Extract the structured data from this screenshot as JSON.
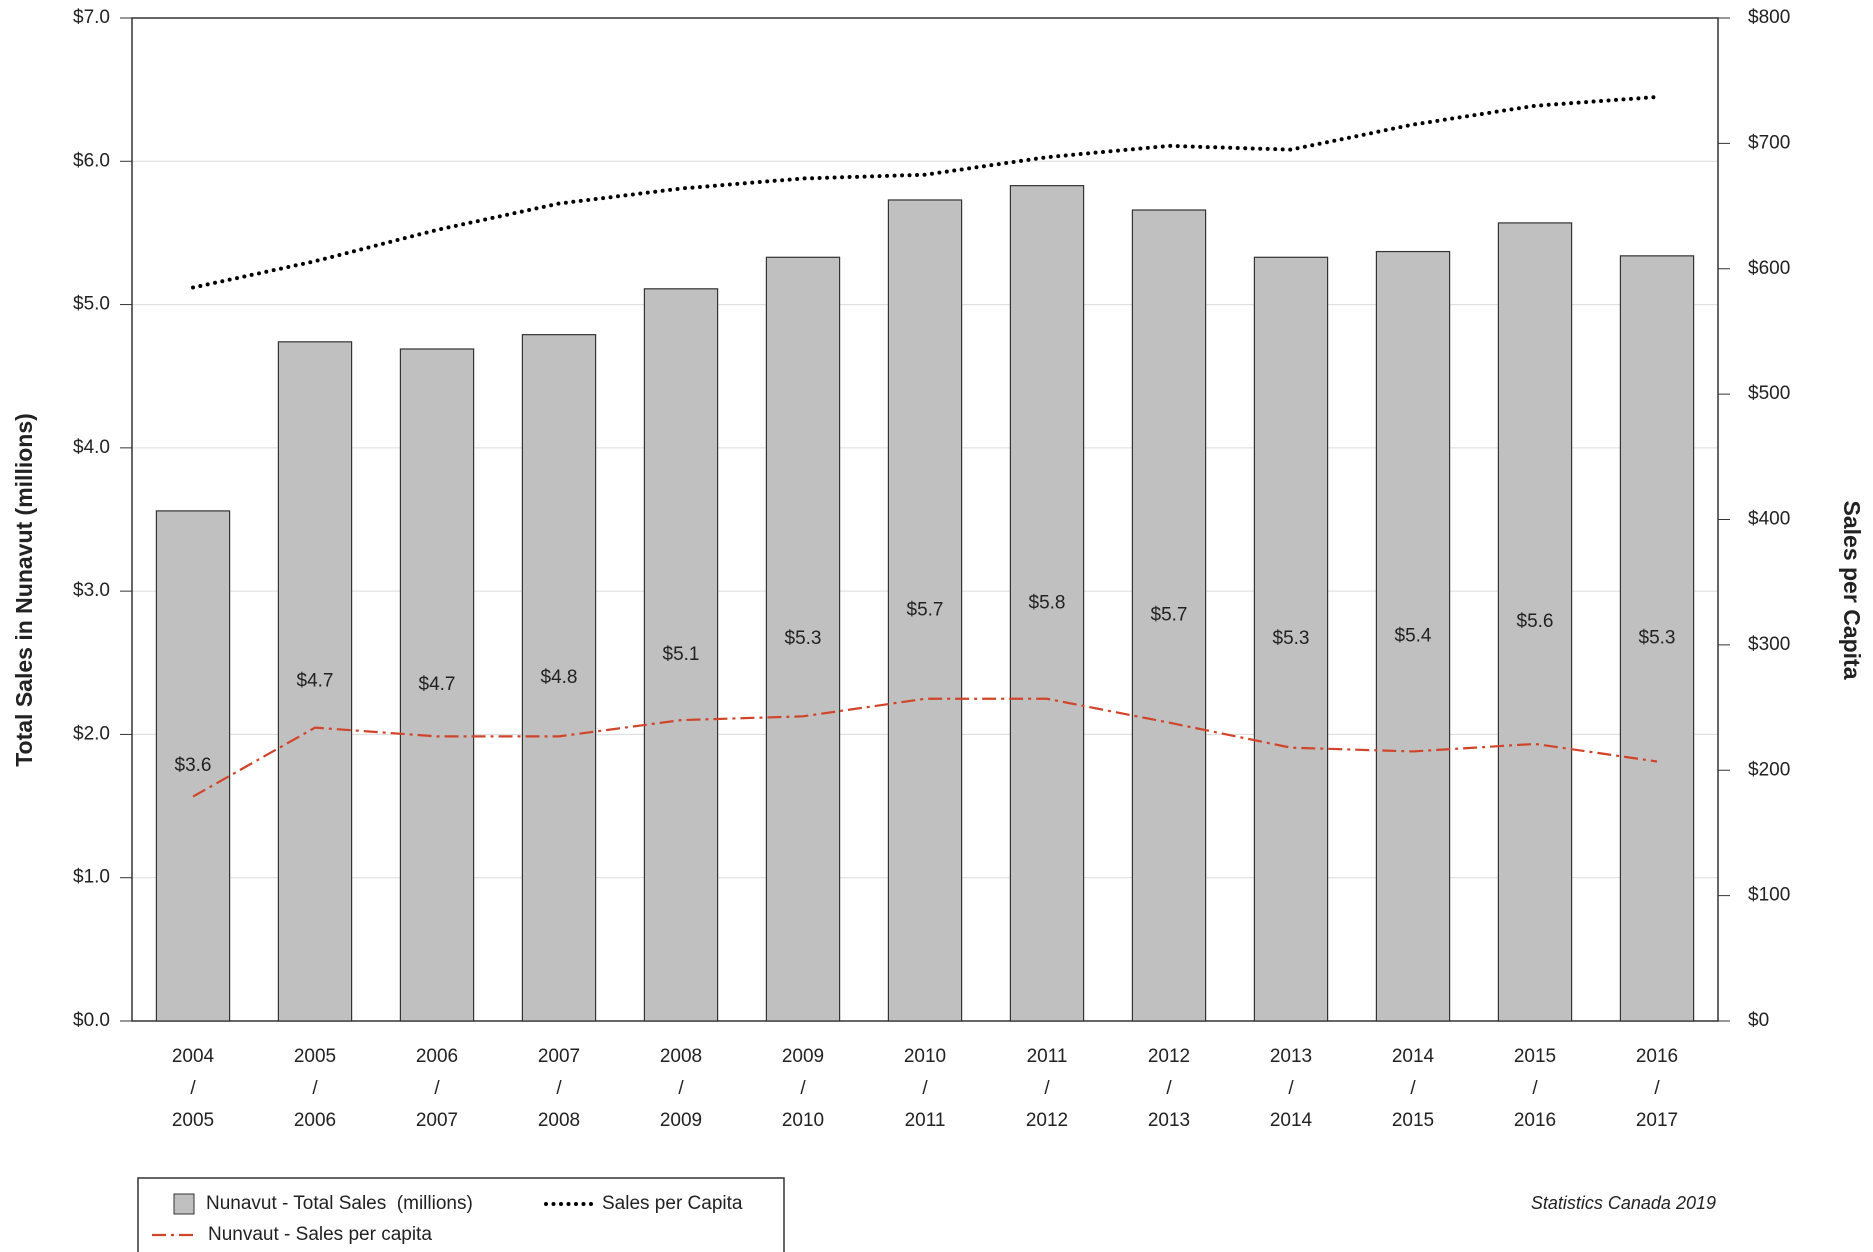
{
  "chart_data": {
    "type": "bar",
    "y_label": "Total Sales in Nunavut (millions)",
    "y2_label": "Sales per Capita",
    "source": "Statistics Canada 2019",
    "categories": [
      [
        "2004",
        "/",
        "2005"
      ],
      [
        "2005",
        "/",
        "2006"
      ],
      [
        "2006",
        "/",
        "2007"
      ],
      [
        "2007",
        "/",
        "2008"
      ],
      [
        "2008",
        "/",
        "2009"
      ],
      [
        "2009",
        "/",
        "2010"
      ],
      [
        "2010",
        "/",
        "2011"
      ],
      [
        "2011",
        "/",
        "2012"
      ],
      [
        "2012",
        "/",
        "2013"
      ],
      [
        "2013",
        "/",
        "2014"
      ],
      [
        "2014",
        "/",
        "2015"
      ],
      [
        "2015",
        "/",
        "2016"
      ],
      [
        "2016",
        "/",
        "2017"
      ]
    ],
    "series": [
      {
        "name": "Nunavut - Total Sales  (millions)",
        "type": "bar",
        "axis": "y",
        "color": "#c0c0c0",
        "values": [
          3.56,
          4.74,
          4.69,
          4.79,
          5.11,
          5.33,
          5.73,
          5.83,
          5.66,
          5.33,
          5.37,
          5.57,
          5.34
        ],
        "value_labels": [
          "$3.6",
          "$4.7",
          "$4.7",
          "$4.8",
          "$5.1",
          "$5.3",
          "$5.7",
          "$5.8",
          "$5.7",
          "$5.3",
          "$5.4",
          "$5.6",
          "$5.3"
        ]
      },
      {
        "name": "Sales per Capita",
        "type": "line",
        "axis": "y2",
        "color": "#000000",
        "style": "dotted",
        "values": [
          585,
          606,
          631,
          652,
          664,
          672,
          675,
          689,
          698,
          695,
          715,
          730,
          737
        ]
      },
      {
        "name": "Nunvaut - Sales per capita",
        "type": "line",
        "axis": "y2",
        "color": "#d0452a",
        "style": "dashdot",
        "values": [
          179,
          234,
          227,
          227,
          240,
          243,
          257,
          257,
          238,
          218,
          215,
          221,
          207
        ]
      }
    ],
    "ylim": [
      0,
      7
    ],
    "yticks": [
      {
        "value": 0,
        "label": "$0.0"
      },
      {
        "value": 1,
        "label": "$1.0"
      },
      {
        "value": 2,
        "label": "$2.0"
      },
      {
        "value": 3,
        "label": "$3.0"
      },
      {
        "value": 4,
        "label": "$4.0"
      },
      {
        "value": 5,
        "label": "$5.0"
      },
      {
        "value": 6,
        "label": "$6.0"
      },
      {
        "value": 7,
        "label": "$7.0"
      }
    ],
    "y2lim": [
      0,
      800
    ],
    "y2ticks": [
      {
        "value": 0,
        "label": "$0"
      },
      {
        "value": 100,
        "label": "$100"
      },
      {
        "value": 200,
        "label": "$200"
      },
      {
        "value": 300,
        "label": "$300"
      },
      {
        "value": 400,
        "label": "$400"
      },
      {
        "value": 500,
        "label": "$500"
      },
      {
        "value": 600,
        "label": "$600"
      },
      {
        "value": 700,
        "label": "$700"
      },
      {
        "value": 800,
        "label": "$800"
      }
    ],
    "grid": true
  }
}
